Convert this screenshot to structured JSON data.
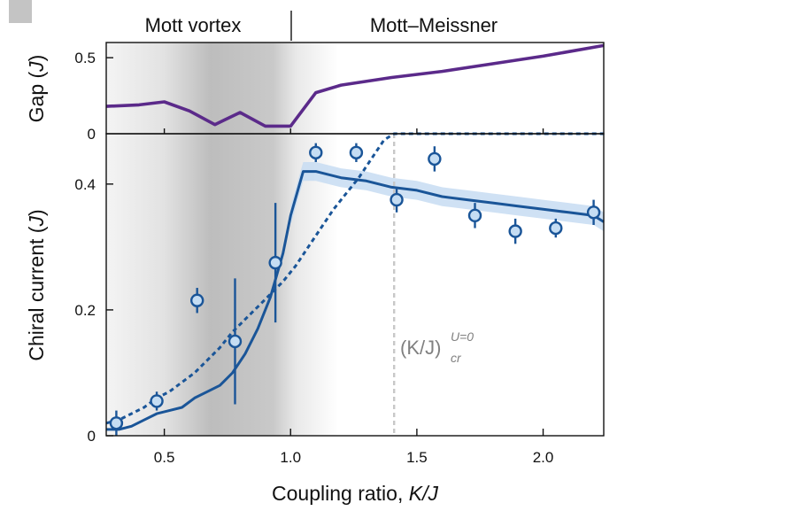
{
  "chart_data": [
    {
      "type": "line",
      "panel": "top",
      "ylabel": "Gap (J)",
      "ylabel_text": "Gap (",
      "ylabel_var": "J",
      "ylabel_close": ")",
      "xlim": [
        0.27,
        2.24
      ],
      "ylim": [
        0,
        0.6
      ],
      "yticks": [
        0,
        0.5
      ],
      "ytick_labels": [
        "0",
        "0.5"
      ],
      "xticks": [
        0.5,
        1.0,
        1.5,
        2.0
      ],
      "grid": false,
      "phase_labels": [
        "Mott vortex",
        "Mott–Meissner"
      ],
      "phase_boundary": 1.0,
      "series": [
        {
          "color": "#5b2a8a",
          "x": [
            0.27,
            0.4,
            0.5,
            0.6,
            0.7,
            0.8,
            0.9,
            1.0,
            1.1,
            1.2,
            1.4,
            1.6,
            1.8,
            2.0,
            2.24
          ],
          "y": [
            0.18,
            0.19,
            0.21,
            0.15,
            0.06,
            0.14,
            0.05,
            0.05,
            0.27,
            0.32,
            0.37,
            0.41,
            0.46,
            0.51,
            0.58
          ]
        }
      ]
    },
    {
      "type": "line",
      "panel": "bottom",
      "xlabel": "Coupling ratio, K/J",
      "xlabel_text": "Coupling ratio, ",
      "xlabel_var": "K/J",
      "ylabel": "Chiral current (J)",
      "ylabel_text": "Chiral current (",
      "ylabel_var": "J",
      "ylabel_close": ")",
      "xlim": [
        0.27,
        2.24
      ],
      "ylim": [
        0,
        0.48
      ],
      "xticks": [
        0.5,
        1.0,
        1.5,
        2.0
      ],
      "xtick_labels": [
        "0.5",
        "1.0",
        "1.5",
        "2.0"
      ],
      "yticks": [
        0,
        0.2,
        0.4
      ],
      "ytick_labels": [
        "0",
        "0.2",
        "0.4"
      ],
      "grid": false,
      "annotation": {
        "text_main": "(K/J)",
        "text_sub": "cr",
        "text_sup": "U=0",
        "x_position": 1.41
      },
      "colors": {
        "theory": "#1a5598",
        "band": "#c7dcf2",
        "marker_fill": "#c5ddf3",
        "vline": "#c8c8c8",
        "shade_dark": "#b8b8b8",
        "shade_light": "#f0f0f0"
      },
      "series": [
        {
          "style": "solid",
          "x": [
            0.27,
            0.32,
            0.37,
            0.42,
            0.47,
            0.52,
            0.57,
            0.62,
            0.67,
            0.72,
            0.77,
            0.82,
            0.87,
            0.92,
            0.97,
            1.0,
            1.05,
            1.1,
            1.2,
            1.3,
            1.4,
            1.5,
            1.6,
            1.7,
            1.8,
            1.9,
            2.0,
            2.1,
            2.2,
            2.24
          ],
          "y": [
            0.01,
            0.01,
            0.015,
            0.025,
            0.035,
            0.04,
            0.045,
            0.06,
            0.07,
            0.08,
            0.1,
            0.13,
            0.17,
            0.22,
            0.29,
            0.35,
            0.42,
            0.42,
            0.41,
            0.405,
            0.395,
            0.39,
            0.38,
            0.375,
            0.37,
            0.365,
            0.36,
            0.355,
            0.35,
            0.34
          ],
          "band": 0.015
        },
        {
          "style": "dashed",
          "x": [
            0.27,
            0.32,
            0.37,
            0.42,
            0.47,
            0.52,
            0.57,
            0.62,
            0.67,
            0.72,
            0.77,
            0.82,
            0.87,
            0.92,
            0.97,
            1.02,
            1.07,
            1.12,
            1.17,
            1.22,
            1.27,
            1.32,
            1.37,
            1.41,
            1.6,
            1.8,
            2.0,
            2.24
          ],
          "y": [
            0.02,
            0.025,
            0.035,
            0.045,
            0.06,
            0.07,
            0.085,
            0.1,
            0.12,
            0.14,
            0.165,
            0.185,
            0.205,
            0.225,
            0.245,
            0.27,
            0.3,
            0.33,
            0.36,
            0.385,
            0.41,
            0.44,
            0.47,
            0.48,
            0.48,
            0.48,
            0.48,
            0.48
          ]
        },
        {
          "style": "markers",
          "x": [
            0.31,
            0.47,
            0.63,
            0.78,
            0.94,
            1.1,
            1.26,
            1.42,
            1.57,
            1.73,
            1.89,
            2.05,
            2.2
          ],
          "y": [
            0.02,
            0.055,
            0.215,
            0.15,
            0.275,
            0.45,
            0.45,
            0.375,
            0.44,
            0.35,
            0.325,
            0.33,
            0.355
          ],
          "err": [
            0.02,
            0.015,
            0.02,
            0.1,
            0.095,
            0.015,
            0.015,
            0.02,
            0.02,
            0.02,
            0.02,
            0.015,
            0.02
          ]
        }
      ]
    }
  ]
}
